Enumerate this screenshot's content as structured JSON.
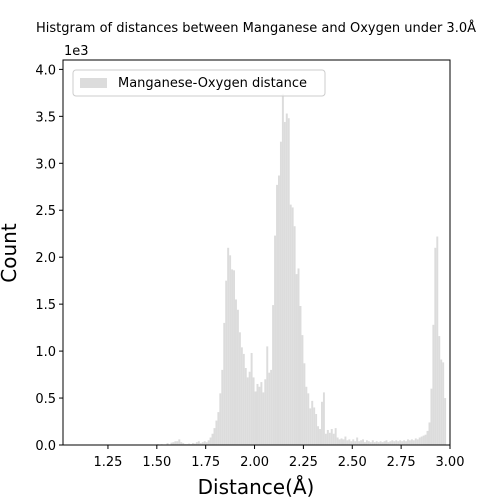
{
  "chart_data": {
    "type": "bar",
    "title": "Histgram of distances between Manganese and Oxygen under 3.0Å",
    "xlabel": "Distance(Å)",
    "ylabel": "Count",
    "y_offset_label": "1e3",
    "xlim": [
      1.02,
      3.0
    ],
    "ylim": [
      0,
      4100
    ],
    "x_ticks": [
      1.25,
      1.5,
      1.75,
      2.0,
      2.25,
      2.5,
      2.75,
      3.0
    ],
    "x_tick_labels": [
      "1.25",
      "1.50",
      "1.75",
      "2.00",
      "2.25",
      "2.50",
      "2.75",
      "3.00"
    ],
    "y_ticks": [
      0,
      500,
      1000,
      1500,
      2000,
      2500,
      3000,
      3500,
      4000
    ],
    "y_tick_labels": [
      "0.0",
      "0.5",
      "1.0",
      "1.5",
      "2.0",
      "2.5",
      "3.0",
      "3.5",
      "4.0"
    ],
    "bar_color": "#dcdcdc",
    "grid": false,
    "legend": {
      "position": "top-left",
      "entries": [
        "Manganese-Oxygen distance"
      ]
    },
    "bin_width": 0.01,
    "bins": [
      {
        "x": 1.4,
        "y": 5
      },
      {
        "x": 1.45,
        "y": 5
      },
      {
        "x": 1.5,
        "y": 10
      },
      {
        "x": 1.52,
        "y": 8
      },
      {
        "x": 1.55,
        "y": 20
      },
      {
        "x": 1.57,
        "y": 25
      },
      {
        "x": 1.58,
        "y": 30
      },
      {
        "x": 1.59,
        "y": 40
      },
      {
        "x": 1.6,
        "y": 40
      },
      {
        "x": 1.61,
        "y": 60
      },
      {
        "x": 1.62,
        "y": 30
      },
      {
        "x": 1.63,
        "y": 20
      },
      {
        "x": 1.64,
        "y": 10
      },
      {
        "x": 1.65,
        "y": 10
      },
      {
        "x": 1.66,
        "y": 15
      },
      {
        "x": 1.67,
        "y": 10
      },
      {
        "x": 1.68,
        "y": 20
      },
      {
        "x": 1.69,
        "y": 15
      },
      {
        "x": 1.7,
        "y": 30
      },
      {
        "x": 1.71,
        "y": 40
      },
      {
        "x": 1.72,
        "y": 20
      },
      {
        "x": 1.73,
        "y": 30
      },
      {
        "x": 1.74,
        "y": 40
      },
      {
        "x": 1.75,
        "y": 30
      },
      {
        "x": 1.76,
        "y": 50
      },
      {
        "x": 1.77,
        "y": 80
      },
      {
        "x": 1.78,
        "y": 120
      },
      {
        "x": 1.79,
        "y": 180
      },
      {
        "x": 1.8,
        "y": 260
      },
      {
        "x": 1.81,
        "y": 350
      },
      {
        "x": 1.82,
        "y": 550
      },
      {
        "x": 1.83,
        "y": 800
      },
      {
        "x": 1.84,
        "y": 1300
      },
      {
        "x": 1.85,
        "y": 1750
      },
      {
        "x": 1.86,
        "y": 2100
      },
      {
        "x": 1.87,
        "y": 2020
      },
      {
        "x": 1.88,
        "y": 1870
      },
      {
        "x": 1.89,
        "y": 1860
      },
      {
        "x": 1.9,
        "y": 1550
      },
      {
        "x": 1.91,
        "y": 1440
      },
      {
        "x": 1.92,
        "y": 1200
      },
      {
        "x": 1.93,
        "y": 1040
      },
      {
        "x": 1.94,
        "y": 970
      },
      {
        "x": 1.95,
        "y": 820
      },
      {
        "x": 1.96,
        "y": 720
      },
      {
        "x": 1.97,
        "y": 780
      },
      {
        "x": 1.98,
        "y": 980
      },
      {
        "x": 1.99,
        "y": 720
      },
      {
        "x": 2.0,
        "y": 570
      },
      {
        "x": 2.01,
        "y": 650
      },
      {
        "x": 2.02,
        "y": 620
      },
      {
        "x": 2.03,
        "y": 670
      },
      {
        "x": 2.04,
        "y": 560
      },
      {
        "x": 2.05,
        "y": 700
      },
      {
        "x": 2.06,
        "y": 1050
      },
      {
        "x": 2.07,
        "y": 770
      },
      {
        "x": 2.08,
        "y": 800
      },
      {
        "x": 2.09,
        "y": 1490
      },
      {
        "x": 2.1,
        "y": 2230
      },
      {
        "x": 2.11,
        "y": 2770
      },
      {
        "x": 2.12,
        "y": 2870
      },
      {
        "x": 2.13,
        "y": 3230
      },
      {
        "x": 2.14,
        "y": 3740
      },
      {
        "x": 2.15,
        "y": 3440
      },
      {
        "x": 2.16,
        "y": 3530
      },
      {
        "x": 2.17,
        "y": 3480
      },
      {
        "x": 2.18,
        "y": 2560
      },
      {
        "x": 2.19,
        "y": 2530
      },
      {
        "x": 2.2,
        "y": 2330
      },
      {
        "x": 2.21,
        "y": 1820
      },
      {
        "x": 2.22,
        "y": 1880
      },
      {
        "x": 2.23,
        "y": 1480
      },
      {
        "x": 2.24,
        "y": 1170
      },
      {
        "x": 2.25,
        "y": 870
      },
      {
        "x": 2.26,
        "y": 620
      },
      {
        "x": 2.27,
        "y": 550
      },
      {
        "x": 2.28,
        "y": 390
      },
      {
        "x": 2.29,
        "y": 470
      },
      {
        "x": 2.3,
        "y": 400
      },
      {
        "x": 2.31,
        "y": 330
      },
      {
        "x": 2.32,
        "y": 200
      },
      {
        "x": 2.33,
        "y": 170
      },
      {
        "x": 2.34,
        "y": 460
      },
      {
        "x": 2.35,
        "y": 560
      },
      {
        "x": 2.36,
        "y": 120
      },
      {
        "x": 2.37,
        "y": 160
      },
      {
        "x": 2.38,
        "y": 130
      },
      {
        "x": 2.39,
        "y": 170
      },
      {
        "x": 2.4,
        "y": 120
      },
      {
        "x": 2.41,
        "y": 180
      },
      {
        "x": 2.42,
        "y": 80
      },
      {
        "x": 2.43,
        "y": 60
      },
      {
        "x": 2.44,
        "y": 70
      },
      {
        "x": 2.45,
        "y": 60
      },
      {
        "x": 2.46,
        "y": 90
      },
      {
        "x": 2.47,
        "y": 50
      },
      {
        "x": 2.48,
        "y": 60
      },
      {
        "x": 2.49,
        "y": 40
      },
      {
        "x": 2.5,
        "y": 60
      },
      {
        "x": 2.51,
        "y": 40
      },
      {
        "x": 2.52,
        "y": 80
      },
      {
        "x": 2.53,
        "y": 40
      },
      {
        "x": 2.54,
        "y": 50
      },
      {
        "x": 2.55,
        "y": 60
      },
      {
        "x": 2.56,
        "y": 30
      },
      {
        "x": 2.57,
        "y": 50
      },
      {
        "x": 2.58,
        "y": 40
      },
      {
        "x": 2.59,
        "y": 30
      },
      {
        "x": 2.6,
        "y": 50
      },
      {
        "x": 2.61,
        "y": 30
      },
      {
        "x": 2.62,
        "y": 40
      },
      {
        "x": 2.63,
        "y": 30
      },
      {
        "x": 2.64,
        "y": 40
      },
      {
        "x": 2.65,
        "y": 30
      },
      {
        "x": 2.66,
        "y": 40
      },
      {
        "x": 2.67,
        "y": 50
      },
      {
        "x": 2.68,
        "y": 30
      },
      {
        "x": 2.69,
        "y": 40
      },
      {
        "x": 2.7,
        "y": 50
      },
      {
        "x": 2.71,
        "y": 40
      },
      {
        "x": 2.72,
        "y": 50
      },
      {
        "x": 2.73,
        "y": 40
      },
      {
        "x": 2.74,
        "y": 50
      },
      {
        "x": 2.75,
        "y": 40
      },
      {
        "x": 2.76,
        "y": 50
      },
      {
        "x": 2.77,
        "y": 40
      },
      {
        "x": 2.78,
        "y": 60
      },
      {
        "x": 2.79,
        "y": 50
      },
      {
        "x": 2.8,
        "y": 60
      },
      {
        "x": 2.81,
        "y": 50
      },
      {
        "x": 2.82,
        "y": 70
      },
      {
        "x": 2.83,
        "y": 60
      },
      {
        "x": 2.84,
        "y": 80
      },
      {
        "x": 2.85,
        "y": 90
      },
      {
        "x": 2.86,
        "y": 100
      },
      {
        "x": 2.87,
        "y": 110
      },
      {
        "x": 2.88,
        "y": 150
      },
      {
        "x": 2.89,
        "y": 240
      },
      {
        "x": 2.9,
        "y": 600
      },
      {
        "x": 2.91,
        "y": 1280
      },
      {
        "x": 2.92,
        "y": 2100
      },
      {
        "x": 2.93,
        "y": 2220
      },
      {
        "x": 2.94,
        "y": 1160
      },
      {
        "x": 2.95,
        "y": 910
      },
      {
        "x": 2.96,
        "y": 880
      },
      {
        "x": 2.97,
        "y": 500
      }
    ]
  }
}
